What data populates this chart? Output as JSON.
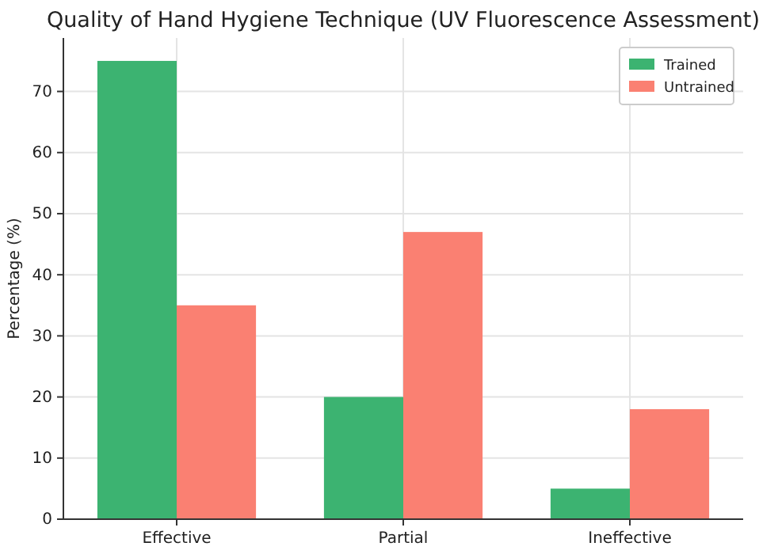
{
  "chart_data": {
    "type": "bar",
    "title": "Quality of Hand Hygiene Technique (UV Fluorescence Assessment)",
    "ylabel": "Percentage (%)",
    "categories": [
      "Effective",
      "Partial",
      "Ineffective"
    ],
    "series": [
      {
        "name": "Trained",
        "color": "#3cb371",
        "values": [
          75,
          20,
          5
        ]
      },
      {
        "name": "Untrained",
        "color": "#fa8072",
        "values": [
          35,
          47,
          18
        ]
      }
    ],
    "ylim": [
      0,
      78.75
    ],
    "yticks": [
      0,
      10,
      20,
      30,
      40,
      50,
      60,
      70
    ],
    "grid": true,
    "legend": "top right"
  }
}
